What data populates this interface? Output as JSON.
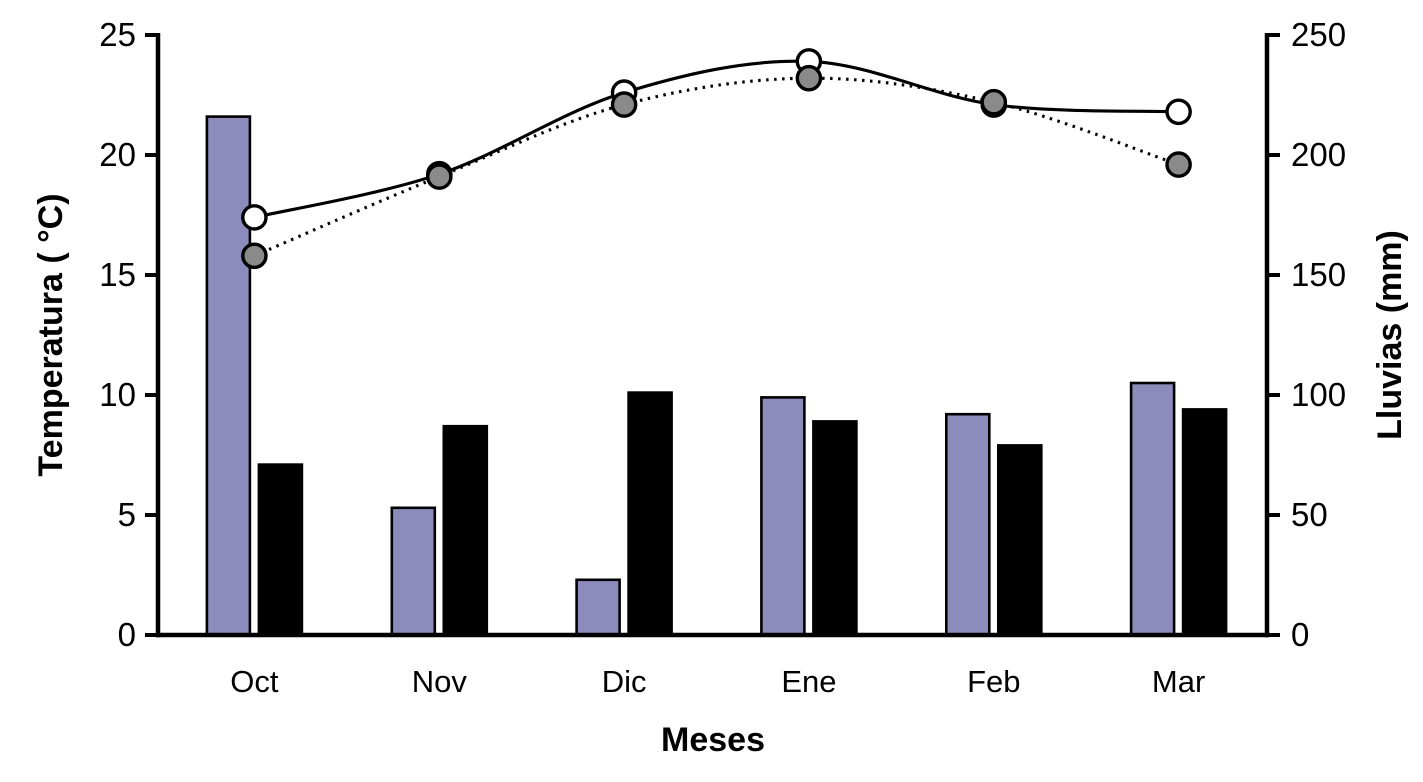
{
  "chart_data": {
    "type": "combo-bar-line",
    "title": "",
    "categories": [
      "Oct",
      "Nov",
      "Dic",
      "Ene",
      "Feb",
      "Mar"
    ],
    "x_axis": {
      "label": "Meses"
    },
    "left_axis": {
      "label": "Temperatura ( °C)",
      "min": 0,
      "max": 25,
      "ticks": [
        0,
        5,
        10,
        15,
        20,
        25
      ]
    },
    "right_axis": {
      "label": "Lluvias (mm)",
      "min": 0,
      "max": 250,
      "ticks": [
        0,
        50,
        100,
        150,
        200,
        250
      ]
    },
    "bar_series": [
      {
        "name": "lluvias-purple-bars",
        "axis": "right",
        "fill": "#8d8bbc",
        "stroke": "#000000",
        "values": [
          216,
          53,
          23,
          99,
          92,
          105
        ]
      },
      {
        "name": "lluvias-black-bars",
        "axis": "right",
        "fill": "#000000",
        "stroke": "#000000",
        "values": [
          71,
          87,
          101,
          89,
          79,
          94
        ]
      }
    ],
    "line_series": [
      {
        "name": "temperatura-solid-line-white-markers",
        "axis": "left",
        "line_style": "solid",
        "line_color": "#000000",
        "marker_fill": "#ffffff",
        "marker_stroke": "#000000",
        "values": [
          17.4,
          19.2,
          22.6,
          23.9,
          22.1,
          21.8
        ]
      },
      {
        "name": "temperatura-dotted-line-gray-markers",
        "axis": "left",
        "line_style": "dotted",
        "line_color": "#000000",
        "marker_fill": "#8a8a8a",
        "marker_stroke": "#000000",
        "values": [
          15.8,
          19.1,
          22.1,
          23.2,
          22.2,
          19.6
        ]
      }
    ],
    "legend": "none",
    "grid": false,
    "colors": {
      "background": "#ffffff",
      "axis": "#000000"
    }
  }
}
